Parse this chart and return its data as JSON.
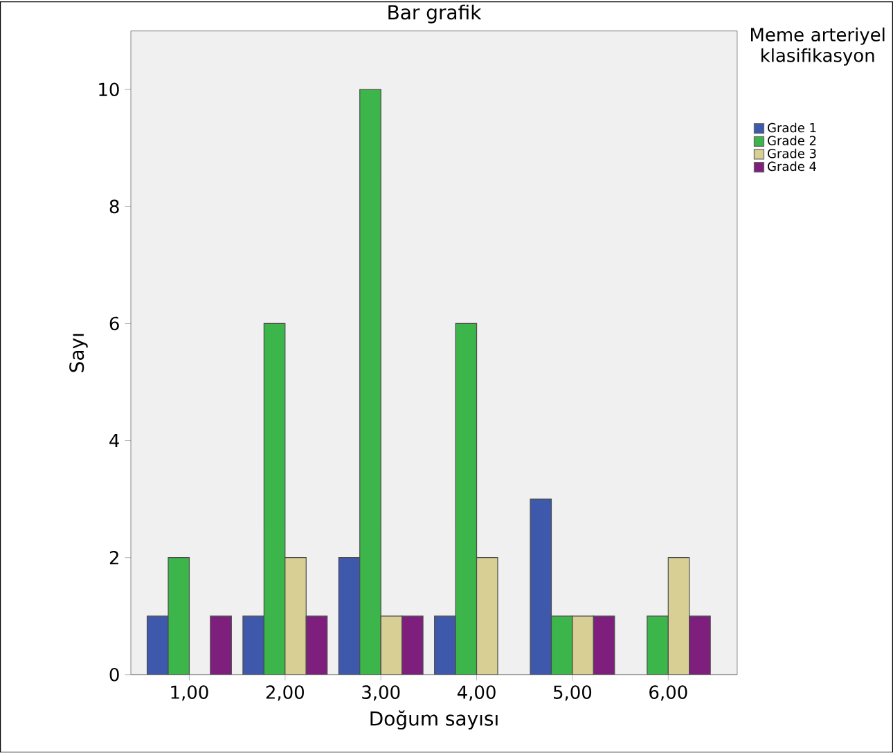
{
  "chart_data": {
    "type": "bar",
    "title": "Bar grafik",
    "xlabel": "Doğum sayısı",
    "ylabel": "Sayı",
    "legend_title": "Meme arteriyel klasifikasyon",
    "categories": [
      "1,00",
      "2,00",
      "3,00",
      "4,00",
      "5,00",
      "6,00"
    ],
    "series": [
      {
        "name": "Grade 1",
        "color": "#3e58ac",
        "values": [
          1,
          1,
          2,
          1,
          3,
          null
        ]
      },
      {
        "name": "Grade 2",
        "color": "#3cb54a",
        "values": [
          2,
          6,
          10,
          6,
          1,
          1
        ]
      },
      {
        "name": "Grade 3",
        "color": "#d8cf94",
        "values": [
          null,
          2,
          1,
          2,
          1,
          2
        ]
      },
      {
        "name": "Grade 4",
        "color": "#7e1f7e",
        "values": [
          1,
          1,
          1,
          null,
          1,
          1
        ]
      }
    ],
    "ylim": [
      0,
      11
    ],
    "yticks": [
      0,
      2,
      4,
      6,
      8,
      10
    ],
    "grid": false,
    "legend": "right"
  }
}
